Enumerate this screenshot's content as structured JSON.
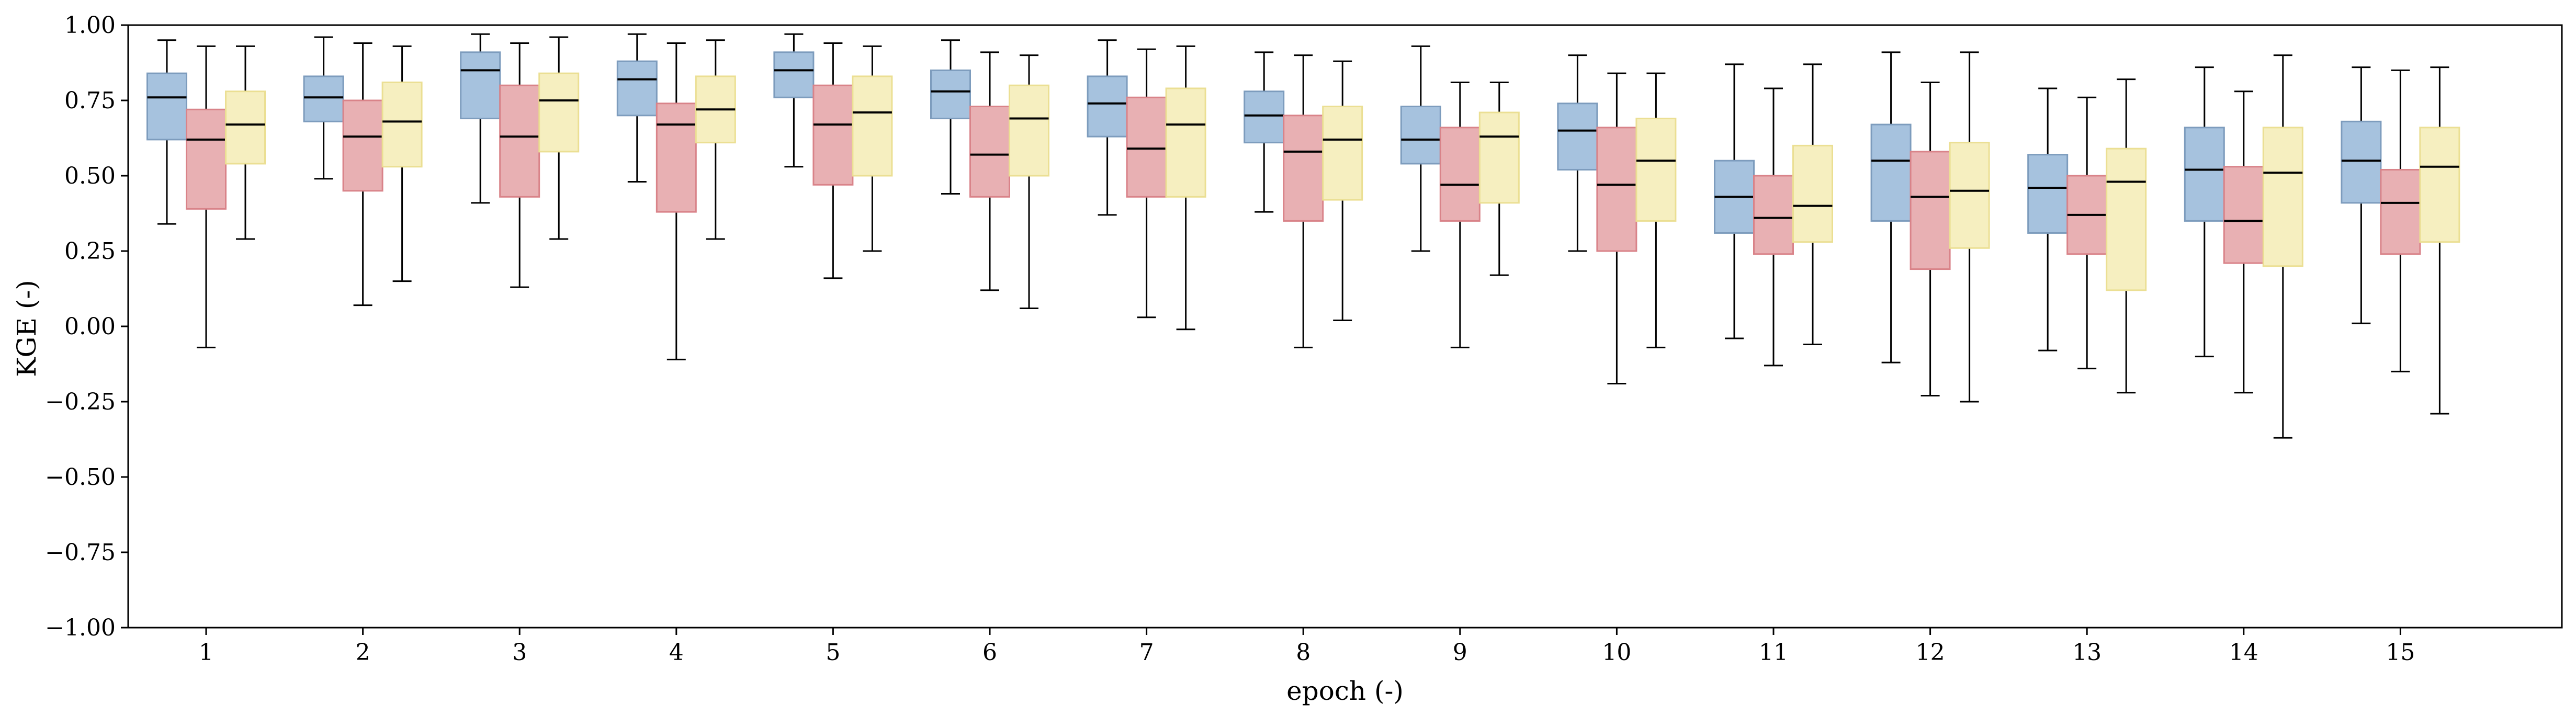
{
  "chart_data": {
    "type": "box",
    "xlabel": "epoch (-)",
    "ylabel": "KGE (-)",
    "ylim": [
      -1.0,
      1.0
    ],
    "yticks": [
      -1.0,
      -0.75,
      -0.5,
      -0.25,
      0.0,
      0.25,
      0.5,
      0.75,
      1.0
    ],
    "ytick_labels": [
      "−1.00",
      "−0.75",
      "−0.50",
      "−0.25",
      "0.00",
      "0.25",
      "0.50",
      "0.75",
      "1.00"
    ],
    "categories": [
      "1",
      "2",
      "3",
      "4",
      "5",
      "6",
      "7",
      "8",
      "9",
      "10",
      "11",
      "12",
      "13",
      "14",
      "15"
    ],
    "grid": false,
    "legend": "none",
    "series": [
      {
        "color": "#a6c2de",
        "edge_color": "#7d9cbd",
        "boxes": [
          {
            "whislo": 0.34,
            "q1": 0.62,
            "med": 0.76,
            "q3": 0.84,
            "whishi": 0.95
          },
          {
            "whislo": 0.49,
            "q1": 0.68,
            "med": 0.76,
            "q3": 0.83,
            "whishi": 0.96
          },
          {
            "whislo": 0.41,
            "q1": 0.69,
            "med": 0.85,
            "q3": 0.91,
            "whishi": 0.97
          },
          {
            "whislo": 0.48,
            "q1": 0.7,
            "med": 0.82,
            "q3": 0.88,
            "whishi": 0.97
          },
          {
            "whislo": 0.53,
            "q1": 0.76,
            "med": 0.85,
            "q3": 0.91,
            "whishi": 0.97
          },
          {
            "whislo": 0.44,
            "q1": 0.69,
            "med": 0.78,
            "q3": 0.85,
            "whishi": 0.95
          },
          {
            "whislo": 0.37,
            "q1": 0.63,
            "med": 0.74,
            "q3": 0.83,
            "whishi": 0.95
          },
          {
            "whislo": 0.38,
            "q1": 0.61,
            "med": 0.7,
            "q3": 0.78,
            "whishi": 0.91
          },
          {
            "whislo": 0.25,
            "q1": 0.54,
            "med": 0.62,
            "q3": 0.73,
            "whishi": 0.93
          },
          {
            "whislo": 0.25,
            "q1": 0.52,
            "med": 0.65,
            "q3": 0.74,
            "whishi": 0.9
          },
          {
            "whislo": -0.04,
            "q1": 0.31,
            "med": 0.43,
            "q3": 0.55,
            "whishi": 0.87
          },
          {
            "whislo": -0.12,
            "q1": 0.35,
            "med": 0.55,
            "q3": 0.67,
            "whishi": 0.91
          },
          {
            "whislo": -0.08,
            "q1": 0.31,
            "med": 0.46,
            "q3": 0.57,
            "whishi": 0.79
          },
          {
            "whislo": -0.1,
            "q1": 0.35,
            "med": 0.52,
            "q3": 0.66,
            "whishi": 0.86
          },
          {
            "whislo": 0.01,
            "q1": 0.41,
            "med": 0.55,
            "q3": 0.68,
            "whishi": 0.86
          }
        ]
      },
      {
        "color": "#e8b0b3",
        "edge_color": "#d98389",
        "boxes": [
          {
            "whislo": -0.07,
            "q1": 0.39,
            "med": 0.62,
            "q3": 0.72,
            "whishi": 0.93
          },
          {
            "whislo": 0.07,
            "q1": 0.45,
            "med": 0.63,
            "q3": 0.75,
            "whishi": 0.94
          },
          {
            "whislo": 0.13,
            "q1": 0.43,
            "med": 0.63,
            "q3": 0.8,
            "whishi": 0.94
          },
          {
            "whislo": -0.11,
            "q1": 0.38,
            "med": 0.67,
            "q3": 0.74,
            "whishi": 0.94
          },
          {
            "whislo": 0.16,
            "q1": 0.47,
            "med": 0.67,
            "q3": 0.8,
            "whishi": 0.94
          },
          {
            "whislo": 0.12,
            "q1": 0.43,
            "med": 0.57,
            "q3": 0.73,
            "whishi": 0.91
          },
          {
            "whislo": 0.03,
            "q1": 0.43,
            "med": 0.59,
            "q3": 0.76,
            "whishi": 0.92
          },
          {
            "whislo": -0.07,
            "q1": 0.35,
            "med": 0.58,
            "q3": 0.7,
            "whishi": 0.9
          },
          {
            "whislo": -0.07,
            "q1": 0.35,
            "med": 0.47,
            "q3": 0.66,
            "whishi": 0.81
          },
          {
            "whislo": -0.19,
            "q1": 0.25,
            "med": 0.47,
            "q3": 0.66,
            "whishi": 0.84
          },
          {
            "whislo": -0.13,
            "q1": 0.24,
            "med": 0.36,
            "q3": 0.5,
            "whishi": 0.79
          },
          {
            "whislo": -0.23,
            "q1": 0.19,
            "med": 0.43,
            "q3": 0.58,
            "whishi": 0.81
          },
          {
            "whislo": -0.14,
            "q1": 0.24,
            "med": 0.37,
            "q3": 0.5,
            "whishi": 0.76
          },
          {
            "whislo": -0.22,
            "q1": 0.21,
            "med": 0.35,
            "q3": 0.53,
            "whishi": 0.78
          },
          {
            "whislo": -0.15,
            "q1": 0.24,
            "med": 0.41,
            "q3": 0.52,
            "whishi": 0.85
          }
        ]
      },
      {
        "color": "#f6efc0",
        "edge_color": "#ebdf93",
        "boxes": [
          {
            "whislo": 0.29,
            "q1": 0.54,
            "med": 0.67,
            "q3": 0.78,
            "whishi": 0.93
          },
          {
            "whislo": 0.15,
            "q1": 0.53,
            "med": 0.68,
            "q3": 0.81,
            "whishi": 0.93
          },
          {
            "whislo": 0.29,
            "q1": 0.58,
            "med": 0.75,
            "q3": 0.84,
            "whishi": 0.96
          },
          {
            "whislo": 0.29,
            "q1": 0.61,
            "med": 0.72,
            "q3": 0.83,
            "whishi": 0.95
          },
          {
            "whislo": 0.25,
            "q1": 0.5,
            "med": 0.71,
            "q3": 0.83,
            "whishi": 0.93
          },
          {
            "whislo": 0.06,
            "q1": 0.5,
            "med": 0.69,
            "q3": 0.8,
            "whishi": 0.9
          },
          {
            "whislo": -0.01,
            "q1": 0.43,
            "med": 0.67,
            "q3": 0.79,
            "whishi": 0.93
          },
          {
            "whislo": 0.02,
            "q1": 0.42,
            "med": 0.62,
            "q3": 0.73,
            "whishi": 0.88
          },
          {
            "whislo": 0.17,
            "q1": 0.41,
            "med": 0.63,
            "q3": 0.71,
            "whishi": 0.81
          },
          {
            "whislo": -0.07,
            "q1": 0.35,
            "med": 0.55,
            "q3": 0.69,
            "whishi": 0.84
          },
          {
            "whislo": -0.06,
            "q1": 0.28,
            "med": 0.4,
            "q3": 0.6,
            "whishi": 0.87
          },
          {
            "whislo": -0.25,
            "q1": 0.26,
            "med": 0.45,
            "q3": 0.61,
            "whishi": 0.91
          },
          {
            "whislo": -0.22,
            "q1": 0.12,
            "med": 0.48,
            "q3": 0.59,
            "whishi": 0.82
          },
          {
            "whislo": -0.37,
            "q1": 0.2,
            "med": 0.51,
            "q3": 0.66,
            "whishi": 0.9
          },
          {
            "whislo": -0.29,
            "q1": 0.28,
            "med": 0.53,
            "q3": 0.66,
            "whishi": 0.86
          }
        ]
      }
    ]
  }
}
